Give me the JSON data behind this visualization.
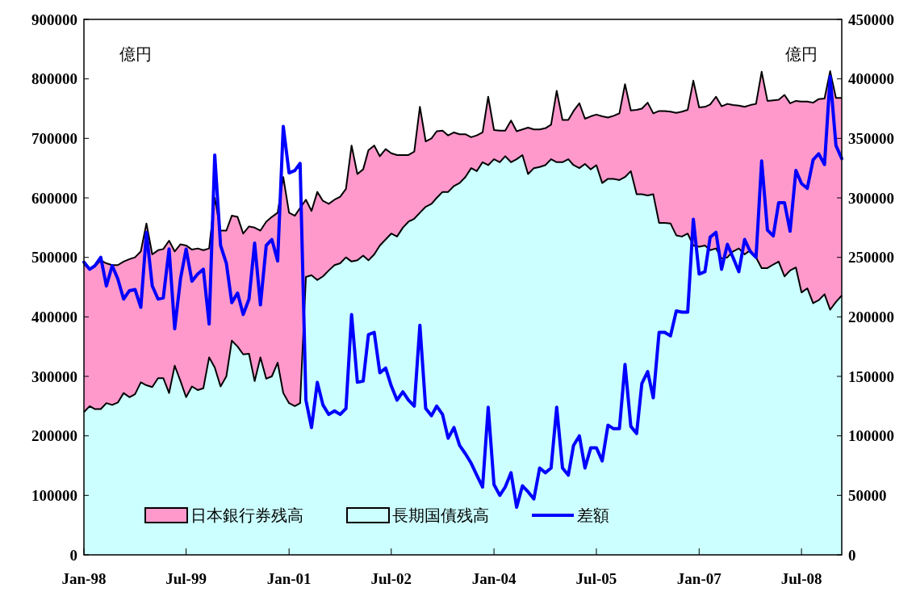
{
  "chart_data": {
    "type": "area",
    "ylabel": "億円",
    "y2label": "億円",
    "x": [
      "1998-01",
      "1998-02",
      "1998-03",
      "1998-04",
      "1998-05",
      "1998-06",
      "1998-07",
      "1998-08",
      "1998-09",
      "1998-10",
      "1998-11",
      "1998-12",
      "1999-01",
      "1999-02",
      "1999-03",
      "1999-04",
      "1999-05",
      "1999-06",
      "1999-07",
      "1999-08",
      "1999-09",
      "1999-10",
      "1999-11",
      "1999-12",
      "2000-01",
      "2000-02",
      "2000-03",
      "2000-04",
      "2000-05",
      "2000-06",
      "2000-07",
      "2000-08",
      "2000-09",
      "2000-10",
      "2000-11",
      "2000-12",
      "2001-01",
      "2001-02",
      "2001-03",
      "2001-04",
      "2001-05",
      "2001-06",
      "2001-07",
      "2001-08",
      "2001-09",
      "2001-10",
      "2001-11",
      "2001-12",
      "2002-01",
      "2002-02",
      "2002-03",
      "2002-04",
      "2002-05",
      "2002-06",
      "2002-07",
      "2002-08",
      "2002-09",
      "2002-10",
      "2002-11",
      "2002-12",
      "2003-01",
      "2003-02",
      "2003-03",
      "2003-04",
      "2003-05",
      "2003-06",
      "2003-07",
      "2003-08",
      "2003-09",
      "2003-10",
      "2003-11",
      "2003-12",
      "2004-01",
      "2004-02",
      "2004-03",
      "2004-04",
      "2004-05",
      "2004-06",
      "2004-07",
      "2004-08",
      "2004-09",
      "2004-10",
      "2004-11",
      "2004-12",
      "2005-01",
      "2005-02",
      "2005-03",
      "2005-04",
      "2005-05",
      "2005-06",
      "2005-07",
      "2005-08",
      "2005-09",
      "2005-10",
      "2005-11",
      "2005-12",
      "2006-01",
      "2006-02",
      "2006-03",
      "2006-04",
      "2006-05",
      "2006-06",
      "2006-07",
      "2006-08",
      "2006-09",
      "2006-10",
      "2006-11",
      "2006-12",
      "2007-01",
      "2007-02",
      "2007-03",
      "2007-04",
      "2007-05",
      "2007-06",
      "2007-07",
      "2007-08",
      "2007-09",
      "2007-10",
      "2007-11",
      "2007-12",
      "2008-01",
      "2008-02",
      "2008-03",
      "2008-04",
      "2008-05",
      "2008-06",
      "2008-07",
      "2008-08",
      "2008-09",
      "2008-10",
      "2008-11",
      "2008-12",
      "2009-01",
      "2009-02"
    ],
    "series": [
      {
        "name": "日本銀行券残高",
        "color": "#ff99cc",
        "values": [
          488000,
          480000,
          485000,
          495000,
          490000,
          487000,
          487000,
          493000,
          497000,
          500000,
          510000,
          557000,
          505000,
          512000,
          514000,
          528000,
          510000,
          522000,
          520000,
          513000,
          515000,
          512000,
          515000,
          600000,
          545000,
          545000,
          570000,
          568000,
          540000,
          552000,
          550000,
          545000,
          560000,
          568000,
          575000,
          635000,
          575000,
          570000,
          583000,
          597000,
          578000,
          610000,
          595000,
          590000,
          597000,
          602000,
          615000,
          688000,
          640000,
          648000,
          680000,
          688000,
          670000,
          682000,
          675000,
          672000,
          672000,
          672000,
          678000,
          753000,
          695000,
          700000,
          712000,
          713000,
          705000,
          710000,
          707000,
          707000,
          702000,
          705000,
          710000,
          770000,
          714000,
          713000,
          713000,
          730000,
          712000,
          715000,
          718000,
          715000,
          715000,
          717000,
          723000,
          780000,
          731000,
          731000,
          746000,
          759000,
          733000,
          737000,
          740000,
          737000,
          735000,
          738000,
          742000,
          791000,
          747000,
          748000,
          750000,
          760000,
          742000,
          746000,
          746000,
          745000,
          743000,
          745000,
          748000,
          797000,
          752000,
          753000,
          757000,
          770000,
          754000,
          758000,
          756000,
          755000,
          753000,
          756000,
          758000,
          812000,
          763000,
          764000,
          765000,
          773000,
          759000,
          763000,
          762000,
          762000,
          760000,
          766000,
          767000,
          813000,
          768000,
          768000
        ]
      },
      {
        "name": "長期国債残高",
        "color": "#ccffff",
        "values": [
          240000,
          250000,
          245000,
          245000,
          255000,
          252000,
          256000,
          272000,
          265000,
          270000,
          290000,
          285000,
          282000,
          297000,
          297000,
          272000,
          318000,
          292000,
          265000,
          283000,
          277000,
          280000,
          332000,
          315000,
          283000,
          300000,
          360000,
          350000,
          337000,
          338000,
          292000,
          332000,
          296000,
          300000,
          323000,
          272000,
          255000,
          250000,
          255000,
          467000,
          470000,
          462000,
          468000,
          478000,
          487000,
          490000,
          500000,
          493000,
          495000,
          503000,
          495000,
          505000,
          520000,
          530000,
          540000,
          535000,
          550000,
          560000,
          565000,
          575000,
          585000,
          590000,
          600000,
          610000,
          610000,
          620000,
          625000,
          635000,
          650000,
          645000,
          660000,
          655000,
          665000,
          660000,
          670000,
          660000,
          665000,
          672000,
          640000,
          650000,
          652000,
          655000,
          665000,
          660000,
          660000,
          665000,
          655000,
          650000,
          657000,
          648000,
          655000,
          625000,
          632000,
          632000,
          630000,
          635000,
          645000,
          606000,
          606000,
          604000,
          606000,
          558000,
          558000,
          557000,
          537000,
          535000,
          540000,
          520000,
          518000,
          520000,
          512000,
          515000,
          498000,
          500000,
          510000,
          515000,
          505000,
          512000,
          500000,
          482000,
          482000,
          488000,
          493000,
          468000,
          478000,
          483000,
          441000,
          448000,
          423000,
          428000,
          438000,
          412000,
          425000,
          436000
        ]
      },
      {
        "name": "差額",
        "type": "line",
        "axis": "y2",
        "color": "#0000ff",
        "values": [
          246000,
          240000,
          243000,
          250000,
          226000,
          243000,
          232000,
          215000,
          222000,
          223000,
          208000,
          271000,
          226000,
          215000,
          216000,
          257000,
          190000,
          232000,
          257000,
          230000,
          236000,
          240000,
          194000,
          336000,
          260000,
          245000,
          212000,
          220000,
          202000,
          215000,
          262000,
          210000,
          260000,
          265000,
          247000,
          360000,
          321000,
          323000,
          329000,
          130000,
          107000,
          145000,
          126000,
          118000,
          121000,
          118000,
          123000,
          202000,
          145000,
          146000,
          185000,
          187000,
          153000,
          157000,
          142000,
          130000,
          137000,
          130000,
          125000,
          193000,
          123000,
          117000,
          125000,
          118000,
          98000,
          107000,
          92000,
          85000,
          77000,
          67000,
          57000,
          124000,
          59000,
          50000,
          57000,
          69000,
          40000,
          58000,
          53000,
          47000,
          73000,
          69000,
          73000,
          124000,
          73000,
          67000,
          92000,
          100000,
          73000,
          90000,
          90000,
          79000,
          109000,
          106000,
          106000,
          160000,
          108000,
          102000,
          144000,
          154000,
          132000,
          187000,
          187000,
          184000,
          205000,
          204000,
          204000,
          282000,
          236000,
          238000,
          267000,
          271000,
          240000,
          261000,
          250000,
          238000,
          265000,
          255000,
          250000,
          331000,
          273000,
          268000,
          296000,
          296000,
          272000,
          323000,
          312000,
          308000,
          332000,
          337000,
          328000,
          402000,
          344000,
          333000
        ]
      }
    ],
    "xlim": [
      "1998-01",
      "2009-02"
    ],
    "xticks": [
      {
        "value": "1998-01",
        "label": "Jan-98"
      },
      {
        "value": "1999-07",
        "label": "Jul-99"
      },
      {
        "value": "2001-01",
        "label": "Jan-01"
      },
      {
        "value": "2002-07",
        "label": "Jul-02"
      },
      {
        "value": "2004-01",
        "label": "Jan-04"
      },
      {
        "value": "2005-07",
        "label": "Jul-05"
      },
      {
        "value": "2007-01",
        "label": "Jan-07"
      },
      {
        "value": "2008-07",
        "label": "Jul-08"
      }
    ],
    "ylim": [
      0,
      900000
    ],
    "yticks": [
      0,
      100000,
      200000,
      300000,
      400000,
      500000,
      600000,
      700000,
      800000,
      900000
    ],
    "y2lim": [
      0,
      450000
    ],
    "y2ticks": [
      0,
      50000,
      100000,
      150000,
      200000,
      250000,
      300000,
      350000,
      400000,
      450000
    ],
    "grid": false,
    "legend": "bottom",
    "line_style": "solid",
    "marker": "none"
  }
}
